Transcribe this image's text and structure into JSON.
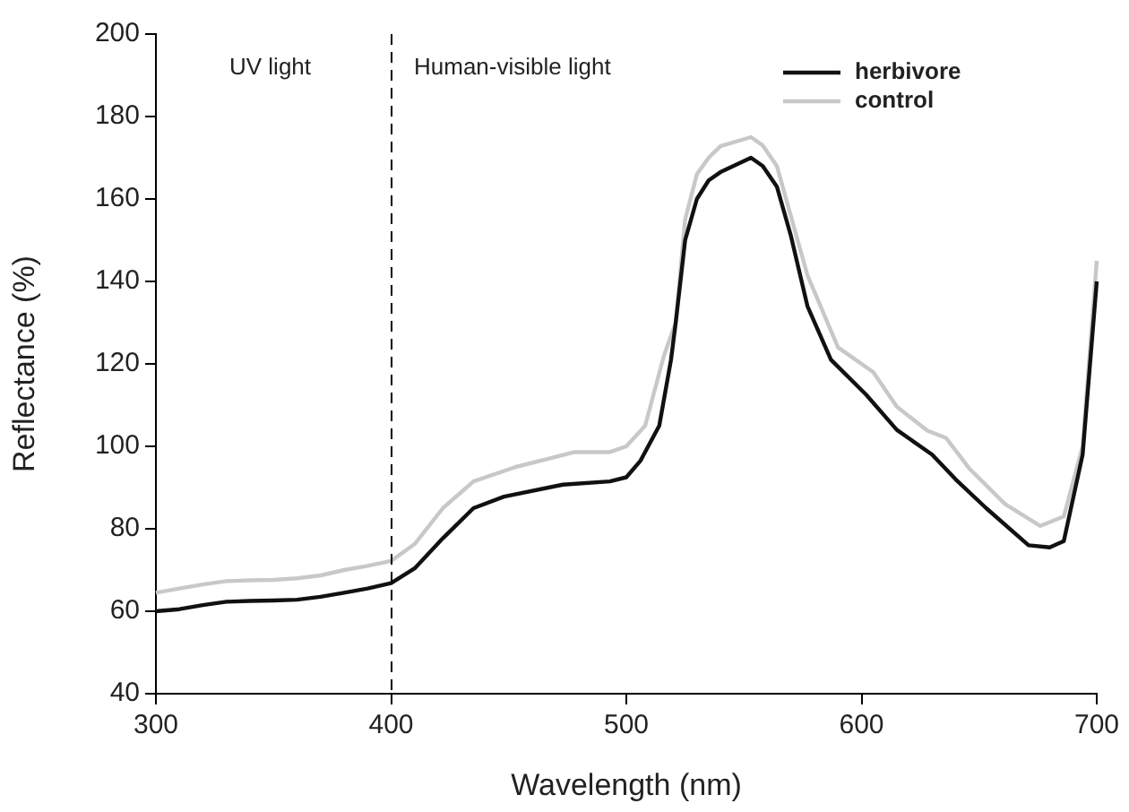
{
  "chart_data": {
    "type": "line",
    "xlabel": "Wavelength (nm)",
    "ylabel": "Reflectance (%)",
    "xlim": [
      300,
      700
    ],
    "xticks": [
      300,
      400,
      500,
      600,
      700
    ],
    "ylim": [
      40,
      200
    ],
    "yticks": [
      40,
      60,
      80,
      100,
      120,
      140,
      160,
      180,
      200
    ],
    "grid": false,
    "legend": "top right",
    "marker": "none",
    "line_style": "solid",
    "ref_lines": [
      {
        "axis": "x",
        "value": 400,
        "line_style": "dashed",
        "color": "#000000"
      }
    ],
    "annotations": [
      "UV light",
      "Human-visible light"
    ],
    "series": [
      {
        "name": "herbivore",
        "color": "#111111",
        "x": [
          300,
          310,
          320,
          330,
          340,
          350,
          360,
          370,
          380,
          390,
          400,
          410,
          422,
          435,
          448,
          473,
          493,
          500,
          506,
          514,
          519,
          521,
          525,
          530,
          535,
          540,
          553,
          558,
          564,
          570,
          577,
          587,
          602,
          615,
          630,
          640,
          653,
          671,
          680,
          686,
          694,
          700
        ],
        "values": [
          60,
          60.5,
          61.5,
          62.3,
          62.5,
          62.6,
          62.8,
          63.5,
          64.5,
          65.5,
          66.8,
          70.4,
          77.7,
          85,
          87.8,
          90.7,
          91.5,
          92.5,
          96.5,
          105,
          121,
          130,
          150,
          160,
          164.5,
          166.5,
          170,
          168,
          163,
          151,
          134,
          121,
          112.5,
          104,
          98,
          92,
          85,
          76,
          75.5,
          77,
          98,
          140
        ]
      },
      {
        "name": "control",
        "color": "#c8c8c8",
        "x": [
          300,
          310,
          320,
          330,
          340,
          350,
          360,
          370,
          380,
          390,
          400,
          410,
          422,
          435,
          453,
          478,
          493,
          500,
          508,
          516,
          521,
          525,
          530,
          535,
          540,
          553,
          558,
          564,
          577,
          590,
          605,
          615,
          628,
          636,
          646,
          661,
          676,
          686,
          694,
          700
        ],
        "values": [
          64.5,
          65.5,
          66.5,
          67.3,
          67.5,
          67.6,
          68,
          68.7,
          70,
          71,
          72.2,
          76.3,
          85,
          91.5,
          95,
          98.6,
          98.6,
          100,
          105,
          122,
          130,
          155,
          166,
          170,
          172.8,
          175,
          173,
          168,
          141.5,
          124,
          118,
          109.6,
          103.8,
          102,
          94.5,
          86,
          80.7,
          83,
          100,
          145
        ]
      }
    ]
  }
}
